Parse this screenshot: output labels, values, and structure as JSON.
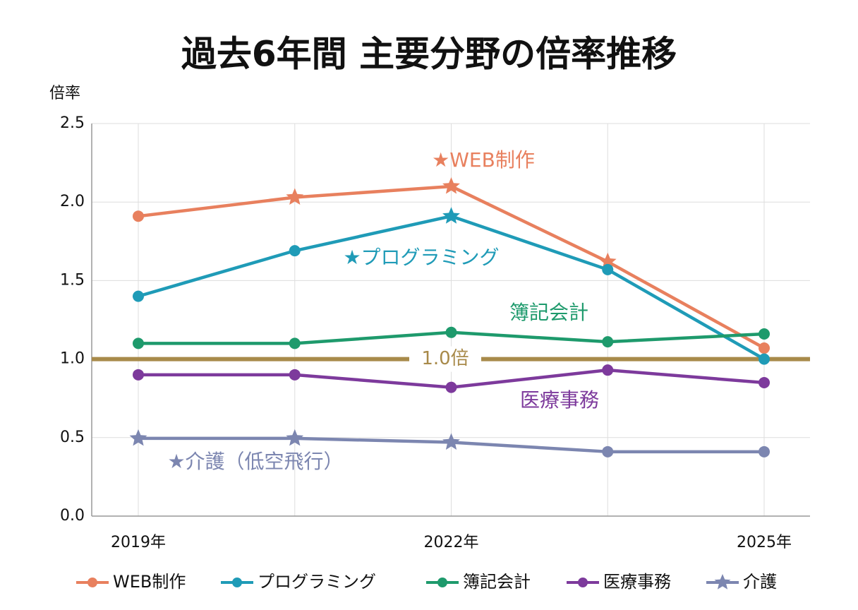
{
  "chart_data": {
    "type": "line",
    "title": "過去6年間 主要分野の倍率推移",
    "y_label": "倍率",
    "categories": [
      "2019年",
      null,
      "2022年",
      null,
      "2025年"
    ],
    "series": [
      {
        "name": "WEB制作",
        "color": "#e8805e",
        "values": [
          1.91,
          2.03,
          2.1,
          1.62,
          1.07
        ],
        "markers": [
          "circle",
          "star",
          "star",
          "star",
          "circle"
        ]
      },
      {
        "name": "プログラミング",
        "color": "#1f9bb7",
        "values": [
          1.4,
          1.69,
          1.91,
          1.57,
          1.0
        ],
        "markers": [
          "circle",
          "circle",
          "star",
          "circle",
          "circle"
        ]
      },
      {
        "name": "簿記会計",
        "color": "#1e9a6c",
        "values": [
          1.1,
          1.1,
          1.17,
          1.11,
          1.16
        ],
        "markers": [
          "circle",
          "circle",
          "circle",
          "circle",
          "circle"
        ]
      },
      {
        "name": "医療事務",
        "color": "#7d3a9c",
        "values": [
          0.9,
          0.9,
          0.82,
          0.93,
          0.85
        ],
        "markers": [
          "circle",
          "circle",
          "circle",
          "circle",
          "circle"
        ]
      },
      {
        "name": "介護",
        "color": "#7c86b0",
        "values": [
          0.495,
          0.495,
          0.47,
          0.41,
          0.41
        ],
        "markers": [
          "star",
          "star",
          "star",
          "circle",
          "circle"
        ]
      }
    ],
    "annotations": [
      "★WEB制作",
      "★プログラミング",
      "簿記会計",
      "医療事務",
      "★介護（低空飛行）"
    ],
    "reference_line": {
      "value": 1.0,
      "label": "1.0倍",
      "color": "#a88a4a"
    },
    "ylim": [
      0,
      2.5
    ],
    "yticks": [
      {
        "value": 0,
        "label": "0.0"
      },
      0.5,
      {
        "value": 1,
        "label": "1.0"
      },
      1.5,
      {
        "value": 2,
        "label": "2.0"
      },
      2.5
    ],
    "grid": true
  }
}
